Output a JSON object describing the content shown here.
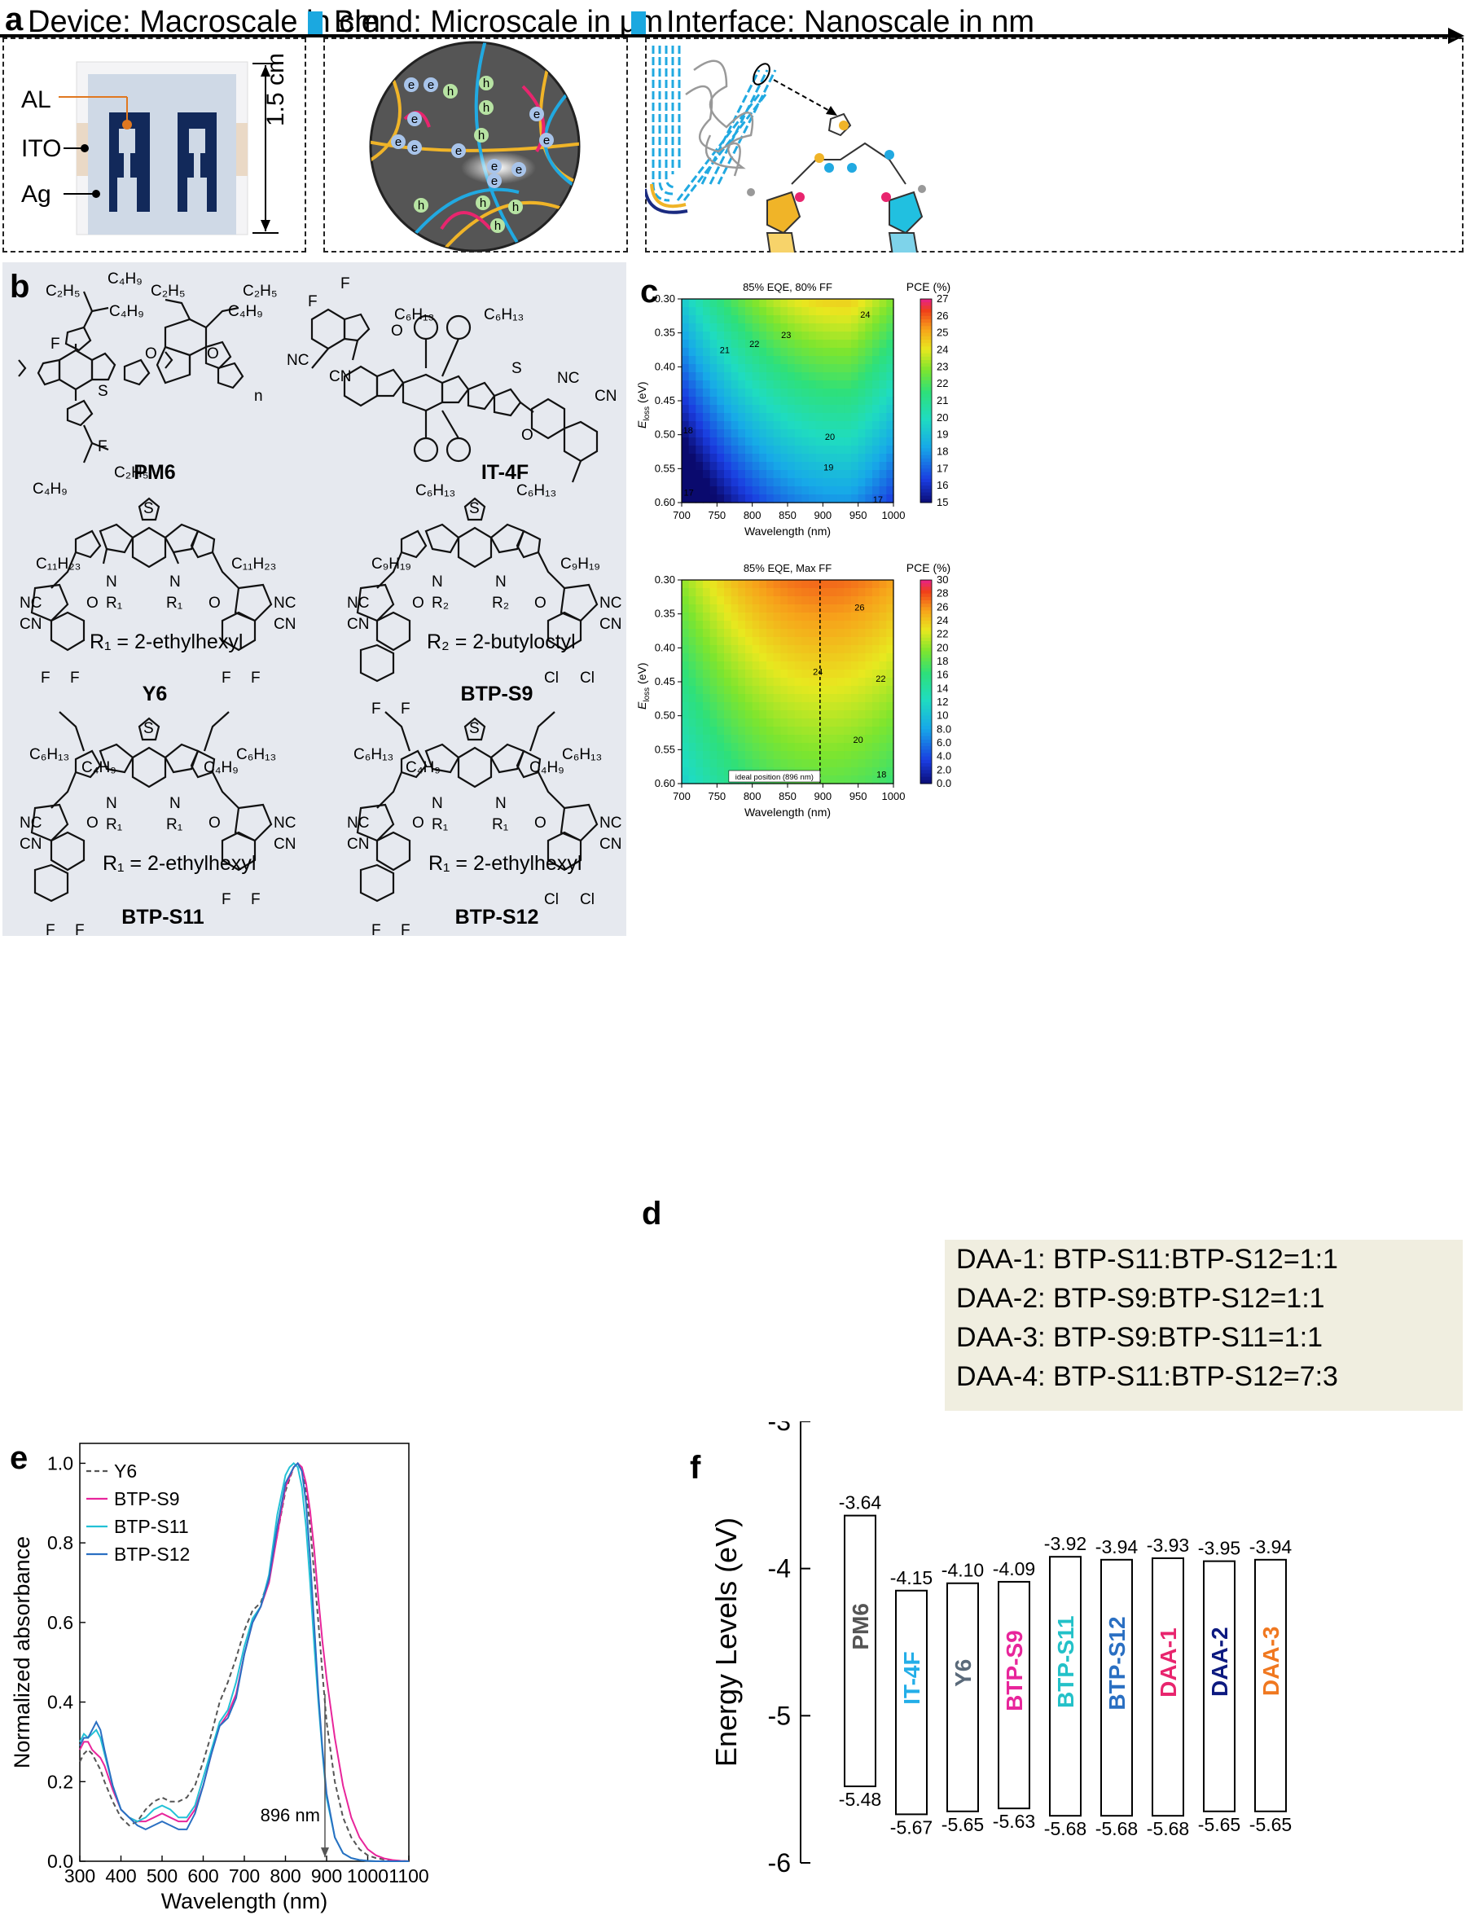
{
  "panel_a": {
    "label": "a",
    "header_device": "Device: Macroscale in cm",
    "header_blend": "Blend: Microscale in μm",
    "header_interface": "Interface: Nanoscale in nm",
    "device_labels": [
      "AL",
      "ITO",
      "Ag"
    ],
    "device_dimension": "1.5 cm",
    "carrier_e": "e",
    "carrier_h": "h"
  },
  "panel_b": {
    "label": "b",
    "molecules": [
      {
        "name": "PM6",
        "substituents": [
          "C₂H₅",
          "C₄H₉",
          "C₂H₅",
          "C₄H₉",
          "C₂H₅",
          "C₄H₉",
          "C₂H₅",
          "C₄H₉",
          "F",
          "F",
          "S",
          "O",
          "O",
          "n"
        ]
      },
      {
        "name": "IT-4F",
        "substituents": [
          "F",
          "F",
          "C₆H₁₃",
          "C₆H₁₃",
          "C₆H₁₃",
          "C₆H₁₃",
          "NC",
          "CN",
          "NC",
          "CN",
          "O",
          "O",
          "S"
        ]
      },
      {
        "name": "Y6",
        "r_label": "R₁ = 2-ethylhexyl",
        "substituents": [
          "C₁₁H₂₃",
          "C₁₁H₂₃",
          "R₁",
          "R₁",
          "N",
          "N",
          "S",
          "NC",
          "CN",
          "NC",
          "CN",
          "F",
          "F",
          "F",
          "F",
          "O",
          "O"
        ]
      },
      {
        "name": "BTP-S9",
        "r_label": "R₂ = 2-butyloctyl",
        "substituents": [
          "C₉H₁₉",
          "C₉H₁₉",
          "R₂",
          "R₂",
          "N",
          "N",
          "S",
          "NC",
          "CN",
          "NC",
          "CN",
          "F",
          "F",
          "Cl",
          "Cl",
          "O",
          "O"
        ]
      },
      {
        "name": "BTP-S11",
        "r_label": "R₁ = 2-ethylhexyl",
        "substituents": [
          "C₆H₁₃",
          "C₄H₉",
          "C₄H₉",
          "C₆H₁₃",
          "R₁",
          "R₁",
          "N",
          "N",
          "S",
          "NC",
          "CN",
          "NC",
          "CN",
          "F",
          "F",
          "F",
          "F",
          "O",
          "O"
        ]
      },
      {
        "name": "BTP-S12",
        "r_label": "R₁ = 2-ethylhexyl",
        "substituents": [
          "C₆H₁₃",
          "C₄H₉",
          "C₄H₉",
          "C₆H₁₃",
          "R₁",
          "R₁",
          "N",
          "N",
          "S",
          "NC",
          "CN",
          "NC",
          "CN",
          "F",
          "F",
          "Cl",
          "Cl",
          "O",
          "O"
        ]
      }
    ]
  },
  "panel_d": {
    "label": "d",
    "lines": [
      "DAA-1: BTP-S11:BTP-S12=1:1",
      "DAA-2: BTP-S9:BTP-S12=1:1",
      "DAA-3: BTP-S9:BTP-S11=1:1",
      "DAA-4: BTP-S11:BTP-S12=7:3"
    ]
  },
  "chart_data": [
    {
      "id": "c-top",
      "panel": "c",
      "type": "heatmap",
      "title": "85% EQE, 80% FF",
      "xlabel": "Wavelength (nm)",
      "ylabel_main": "E",
      "ylabel_sub": "loss",
      "ylabel_unit": " (eV)",
      "xlim": [
        700,
        1000
      ],
      "ylim": [
        0.3,
        0.6
      ],
      "xticks": [
        700,
        750,
        800,
        850,
        900,
        950,
        1000
      ],
      "yticks": [
        "0.30",
        "0.35",
        "0.40",
        "0.45",
        "0.50",
        "0.55",
        "0.60"
      ],
      "colorbar_label": "PCE (%)",
      "colorbar_range": [
        15,
        27
      ],
      "colorbar_ticks": [
        "27",
        "26",
        "25",
        "24",
        "23",
        "22",
        "21",
        "20",
        "19",
        "18",
        "17",
        "16",
        "15"
      ],
      "contour_labels": [
        {
          "text": "24",
          "x": 960,
          "y": 0.323
        },
        {
          "text": "23",
          "x": 848,
          "y": 0.353
        },
        {
          "text": "22",
          "x": 803,
          "y": 0.366
        },
        {
          "text": "21",
          "x": 761,
          "y": 0.375
        },
        {
          "text": "20",
          "x": 910,
          "y": 0.503
        },
        {
          "text": "19",
          "x": 908,
          "y": 0.548
        },
        {
          "text": "18",
          "x": 709,
          "y": 0.493
        },
        {
          "text": "17",
          "x": 710,
          "y": 0.585
        },
        {
          "text": "17",
          "x": 978,
          "y": 0.595
        }
      ]
    },
    {
      "id": "c-bottom",
      "panel": "c",
      "type": "heatmap",
      "title": "85% EQE, Max FF",
      "xlabel": "Wavelength (nm)",
      "ylabel_main": "E",
      "ylabel_sub": "loss",
      "ylabel_unit": " (eV)",
      "xlim": [
        700,
        1000
      ],
      "ylim": [
        0.3,
        0.6
      ],
      "xticks": [
        700,
        750,
        800,
        850,
        900,
        950,
        1000
      ],
      "yticks": [
        "0.30",
        "0.35",
        "0.40",
        "0.45",
        "0.50",
        "0.55",
        "0.60"
      ],
      "colorbar_label": "PCE (%)",
      "colorbar_range": [
        0,
        30
      ],
      "colorbar_ticks": [
        "30",
        "28",
        "26",
        "24",
        "22",
        "20",
        "18",
        "16",
        "14",
        "12",
        "10",
        "8.0",
        "6.0",
        "4.0",
        "2.0",
        "0.0"
      ],
      "vline_x": 896,
      "vline_label": "ideal position (896 nm)",
      "contour_labels": [
        {
          "text": "26",
          "x": 952,
          "y": 0.34
        },
        {
          "text": "24",
          "x": 893,
          "y": 0.435
        },
        {
          "text": "22",
          "x": 982,
          "y": 0.445
        },
        {
          "text": "20",
          "x": 950,
          "y": 0.535
        },
        {
          "text": "18",
          "x": 983,
          "y": 0.586
        }
      ]
    },
    {
      "id": "e",
      "panel": "e",
      "type": "line",
      "xlabel": "Wavelength (nm)",
      "ylabel": "Normalized absorbance",
      "xlim": [
        300,
        1100
      ],
      "ylim": [
        0,
        1.05
      ],
      "xticks": [
        300,
        400,
        500,
        600,
        700,
        800,
        900,
        1000,
        1100
      ],
      "yticks": [
        "0.0",
        "0.2",
        "0.4",
        "0.6",
        "0.8",
        "1.0"
      ],
      "legend_position": "top-left",
      "annotation": {
        "text": "896 nm",
        "x": 896
      },
      "series": [
        {
          "name": "Y6",
          "color": "#555555",
          "dash": true,
          "x": [
            300,
            310,
            320,
            330,
            340,
            350,
            360,
            380,
            400,
            420,
            440,
            460,
            480,
            500,
            520,
            540,
            560,
            580,
            600,
            620,
            640,
            660,
            680,
            700,
            720,
            740,
            760,
            780,
            800,
            820,
            830,
            840,
            850,
            860,
            870,
            880,
            890,
            900,
            920,
            940,
            960,
            980,
            1000,
            1020,
            1040,
            1060,
            1080,
            1100
          ],
          "y": [
            0.25,
            0.27,
            0.28,
            0.27,
            0.25,
            0.23,
            0.2,
            0.15,
            0.11,
            0.09,
            0.1,
            0.13,
            0.15,
            0.16,
            0.15,
            0.15,
            0.16,
            0.19,
            0.25,
            0.32,
            0.4,
            0.45,
            0.51,
            0.58,
            0.63,
            0.65,
            0.71,
            0.82,
            0.93,
            0.99,
            1.0,
            0.98,
            0.93,
            0.84,
            0.72,
            0.6,
            0.47,
            0.35,
            0.2,
            0.11,
            0.06,
            0.03,
            0.015,
            0.008,
            0.004,
            0.002,
            0.001,
            0.0
          ]
        },
        {
          "name": "BTP-S9",
          "color": "#e8259b",
          "dash": false,
          "x": [
            300,
            310,
            320,
            330,
            340,
            350,
            360,
            380,
            400,
            420,
            440,
            460,
            480,
            500,
            520,
            540,
            560,
            580,
            600,
            620,
            640,
            660,
            680,
            700,
            720,
            740,
            760,
            780,
            800,
            820,
            830,
            840,
            850,
            860,
            870,
            880,
            890,
            900,
            920,
            940,
            960,
            980,
            1000,
            1020,
            1040,
            1060,
            1080,
            1100
          ],
          "y": [
            0.28,
            0.3,
            0.3,
            0.28,
            0.27,
            0.26,
            0.24,
            0.18,
            0.13,
            0.11,
            0.1,
            0.1,
            0.11,
            0.12,
            0.11,
            0.1,
            0.1,
            0.13,
            0.19,
            0.27,
            0.34,
            0.37,
            0.42,
            0.52,
            0.6,
            0.64,
            0.7,
            0.82,
            0.94,
            0.99,
            1.0,
            0.99,
            0.95,
            0.88,
            0.78,
            0.66,
            0.55,
            0.46,
            0.31,
            0.19,
            0.11,
            0.06,
            0.03,
            0.015,
            0.007,
            0.003,
            0.001,
            0.0
          ]
        },
        {
          "name": "BTP-S11",
          "color": "#23c1d6",
          "dash": false,
          "x": [
            300,
            310,
            320,
            330,
            340,
            350,
            360,
            380,
            400,
            420,
            440,
            460,
            480,
            500,
            520,
            540,
            560,
            580,
            600,
            620,
            640,
            660,
            680,
            700,
            720,
            740,
            760,
            780,
            800,
            810,
            820,
            830,
            840,
            850,
            860,
            870,
            880,
            890,
            900,
            920,
            940,
            960,
            980,
            1000,
            1020,
            1040,
            1060,
            1080,
            1100
          ],
          "y": [
            0.3,
            0.32,
            0.31,
            0.32,
            0.33,
            0.31,
            0.27,
            0.19,
            0.13,
            0.11,
            0.1,
            0.11,
            0.13,
            0.14,
            0.13,
            0.11,
            0.11,
            0.14,
            0.21,
            0.28,
            0.35,
            0.38,
            0.45,
            0.54,
            0.61,
            0.64,
            0.72,
            0.87,
            0.97,
            0.99,
            1.0,
            0.99,
            0.94,
            0.84,
            0.7,
            0.54,
            0.4,
            0.27,
            0.16,
            0.06,
            0.02,
            0.008,
            0.003,
            0.001,
            0.0,
            0.0,
            0.0,
            0.0,
            0.0
          ]
        },
        {
          "name": "BTP-S12",
          "color": "#2a6fc2",
          "dash": false,
          "x": [
            300,
            310,
            320,
            330,
            340,
            350,
            360,
            380,
            400,
            420,
            440,
            460,
            480,
            500,
            520,
            540,
            560,
            580,
            600,
            620,
            640,
            660,
            680,
            700,
            720,
            740,
            760,
            780,
            800,
            820,
            830,
            840,
            850,
            860,
            870,
            880,
            890,
            900,
            920,
            940,
            960,
            980,
            1000,
            1020,
            1040,
            1060,
            1080,
            1100
          ],
          "y": [
            0.29,
            0.31,
            0.31,
            0.33,
            0.35,
            0.33,
            0.28,
            0.19,
            0.13,
            0.11,
            0.09,
            0.08,
            0.09,
            0.1,
            0.09,
            0.08,
            0.08,
            0.12,
            0.19,
            0.27,
            0.34,
            0.36,
            0.41,
            0.52,
            0.6,
            0.64,
            0.71,
            0.84,
            0.95,
            0.99,
            1.0,
            0.98,
            0.9,
            0.76,
            0.59,
            0.42,
            0.28,
            0.17,
            0.06,
            0.02,
            0.008,
            0.003,
            0.001,
            0.0,
            0.0,
            0.0,
            0.0,
            0.0
          ]
        }
      ]
    },
    {
      "id": "f",
      "panel": "f",
      "type": "bar",
      "ylabel": "Energy Levels (eV)",
      "ylim": [
        -6,
        -3
      ],
      "yticks": [
        "-3",
        "-4",
        "-5",
        "-6"
      ],
      "categories": [
        "PM6",
        "IT-4F",
        "Y6",
        "BTP-S9",
        "BTP-S11",
        "BTP-S12",
        "DAA-1",
        "DAA-2",
        "DAA-3"
      ],
      "lumo": [
        -3.64,
        -4.15,
        -4.1,
        -4.09,
        -3.92,
        -3.94,
        -3.93,
        -3.95,
        -3.94
      ],
      "homo": [
        -5.48,
        -5.67,
        -5.65,
        -5.63,
        -5.68,
        -5.68,
        -5.68,
        -5.65,
        -5.65
      ],
      "lumo_labels": [
        "-3.64",
        "-4.15",
        "-4.10",
        "-4.09",
        "-3.92",
        "-3.94",
        "-3.93",
        "-3.95",
        "-3.94"
      ],
      "homo_labels": [
        "-5.48",
        "-5.67",
        "-5.65",
        "-5.63",
        "-5.68",
        "-5.68",
        "-5.68",
        "-5.65",
        "-5.65"
      ],
      "colors": [
        "#555555",
        "#23aee8",
        "#5a6a7a",
        "#e8259b",
        "#23c1c8",
        "#2a6fc2",
        "#e8256e",
        "#0d1a80",
        "#f07820"
      ]
    }
  ]
}
